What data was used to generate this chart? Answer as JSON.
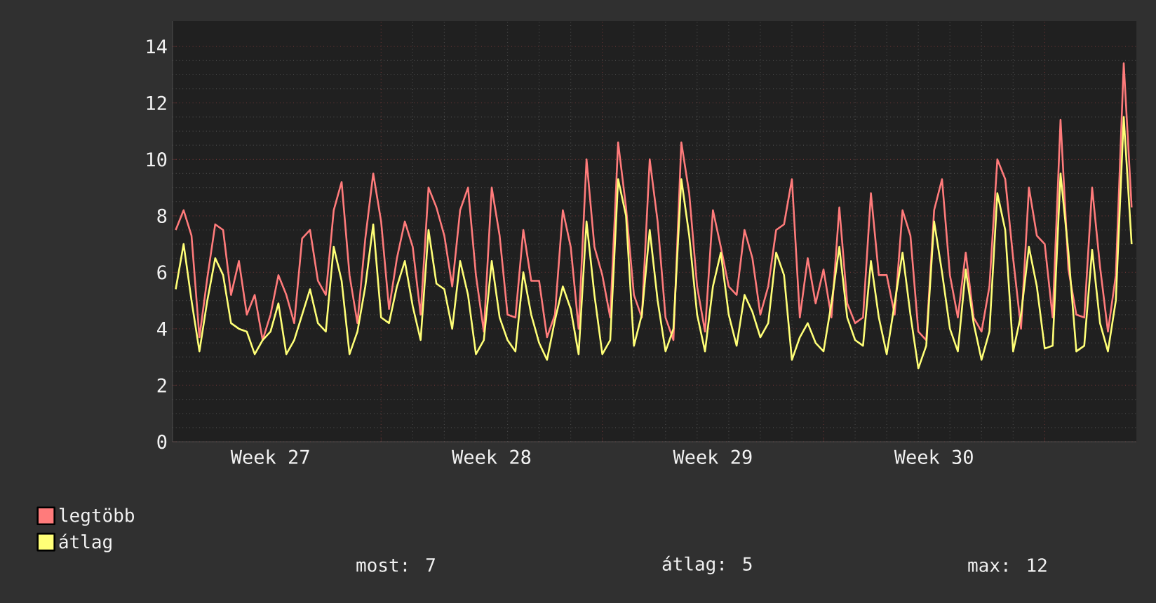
{
  "chart_data": {
    "type": "line",
    "ylim": [
      0,
      14.9
    ],
    "categories": [
      null,
      null,
      null,
      null,
      null,
      null,
      null,
      null,
      null,
      null,
      null,
      null,
      "Week 27",
      null,
      null,
      null,
      null,
      null,
      null,
      null,
      null,
      null,
      null,
      null,
      null,
      null,
      null,
      null,
      null,
      null,
      null,
      null,
      null,
      null,
      null,
      null,
      null,
      null,
      null,
      null,
      "Week 28",
      null,
      null,
      null,
      null,
      null,
      null,
      null,
      null,
      null,
      null,
      null,
      null,
      null,
      null,
      null,
      null,
      null,
      null,
      null,
      null,
      null,
      null,
      null,
      null,
      null,
      null,
      null,
      "Week 29",
      null,
      null,
      null,
      null,
      null,
      null,
      null,
      null,
      null,
      null,
      null,
      null,
      null,
      null,
      null,
      null,
      null,
      null,
      null,
      null,
      null,
      null,
      null,
      null,
      null,
      null,
      null,
      "Week 30",
      null,
      null,
      null,
      null,
      null,
      null,
      null,
      null,
      null,
      null,
      null,
      null,
      null,
      null,
      null,
      null,
      null,
      null,
      null,
      null,
      null,
      null,
      null,
      null,
      null
    ],
    "yticks": [
      0,
      2,
      4,
      6,
      8,
      10,
      12,
      14
    ],
    "grid": true,
    "legend": "bottom left",
    "line_style": "solid",
    "marker": "none",
    "series": [
      {
        "name": "legtöbb",
        "color": "#ff7b7b",
        "values": [
          7.5,
          8.2,
          7.3,
          3.7,
          5.8,
          7.7,
          7.5,
          5.2,
          6.4,
          4.5,
          5.2,
          3.6,
          4.5,
          5.9,
          5.2,
          4.2,
          7.2,
          7.5,
          5.7,
          5.2,
          8.2,
          9.2,
          5.9,
          4.2,
          7.2,
          9.5,
          7.8,
          4.7,
          6.5,
          7.8,
          6.9,
          4.5,
          9.0,
          8.3,
          7.3,
          5.5,
          8.2,
          9.0,
          5.9,
          3.9,
          9.0,
          7.3,
          4.5,
          4.4,
          7.5,
          5.7,
          5.7,
          3.7,
          4.5,
          8.2,
          6.9,
          4.0,
          10.0,
          6.9,
          5.9,
          4.4,
          10.6,
          8.3,
          5.2,
          4.4,
          10.0,
          7.8,
          4.4,
          3.6,
          10.6,
          8.8,
          5.5,
          3.9,
          8.2,
          6.9,
          5.5,
          5.2,
          7.5,
          6.5,
          4.5,
          5.5,
          7.5,
          7.7,
          9.3,
          4.4,
          6.5,
          4.9,
          6.1,
          4.4,
          8.3,
          4.9,
          4.2,
          4.4,
          8.8,
          5.9,
          5.9,
          4.5,
          8.2,
          7.3,
          3.9,
          3.6,
          8.2,
          9.3,
          5.9,
          4.4,
          6.7,
          4.4,
          3.9,
          5.5,
          10.0,
          9.3,
          6.5,
          4.0,
          9.0,
          7.3,
          7.0,
          4.4,
          11.4,
          6.1,
          4.5,
          4.4,
          9.0,
          6.2,
          3.9,
          5.9,
          13.4,
          8.3
        ]
      },
      {
        "name": "átlag",
        "color": "#ffff77",
        "values": [
          5.4,
          7.0,
          5.0,
          3.2,
          5.0,
          6.5,
          5.9,
          4.2,
          4.0,
          3.9,
          3.1,
          3.6,
          3.9,
          4.9,
          3.1,
          3.6,
          4.5,
          5.4,
          4.2,
          3.9,
          6.9,
          5.7,
          3.1,
          3.9,
          5.5,
          7.7,
          4.4,
          4.2,
          5.5,
          6.4,
          4.8,
          3.6,
          7.5,
          5.6,
          5.4,
          4.0,
          6.4,
          5.2,
          3.1,
          3.6,
          6.4,
          4.4,
          3.6,
          3.2,
          6.0,
          4.5,
          3.5,
          2.9,
          4.3,
          5.5,
          4.7,
          3.1,
          7.8,
          5.2,
          3.1,
          3.6,
          9.3,
          8.0,
          3.4,
          4.5,
          7.5,
          5.0,
          3.2,
          4.0,
          9.3,
          7.3,
          4.5,
          3.2,
          5.5,
          6.7,
          4.5,
          3.4,
          5.2,
          4.6,
          3.7,
          4.2,
          6.7,
          5.9,
          2.9,
          3.7,
          4.2,
          3.5,
          3.2,
          4.9,
          6.9,
          4.4,
          3.6,
          3.4,
          6.4,
          4.4,
          3.1,
          4.9,
          6.7,
          4.5,
          2.6,
          3.4,
          7.8,
          6.0,
          4.0,
          3.2,
          6.1,
          4.2,
          2.9,
          3.9,
          8.8,
          7.5,
          3.2,
          4.5,
          6.9,
          5.5,
          3.3,
          3.4,
          9.5,
          6.7,
          3.2,
          3.4,
          6.8,
          4.2,
          3.2,
          5.0,
          11.5,
          7.0
        ]
      }
    ],
    "annotations": [
      "most: 7",
      "átlag: 5",
      "max: 12"
    ]
  }
}
